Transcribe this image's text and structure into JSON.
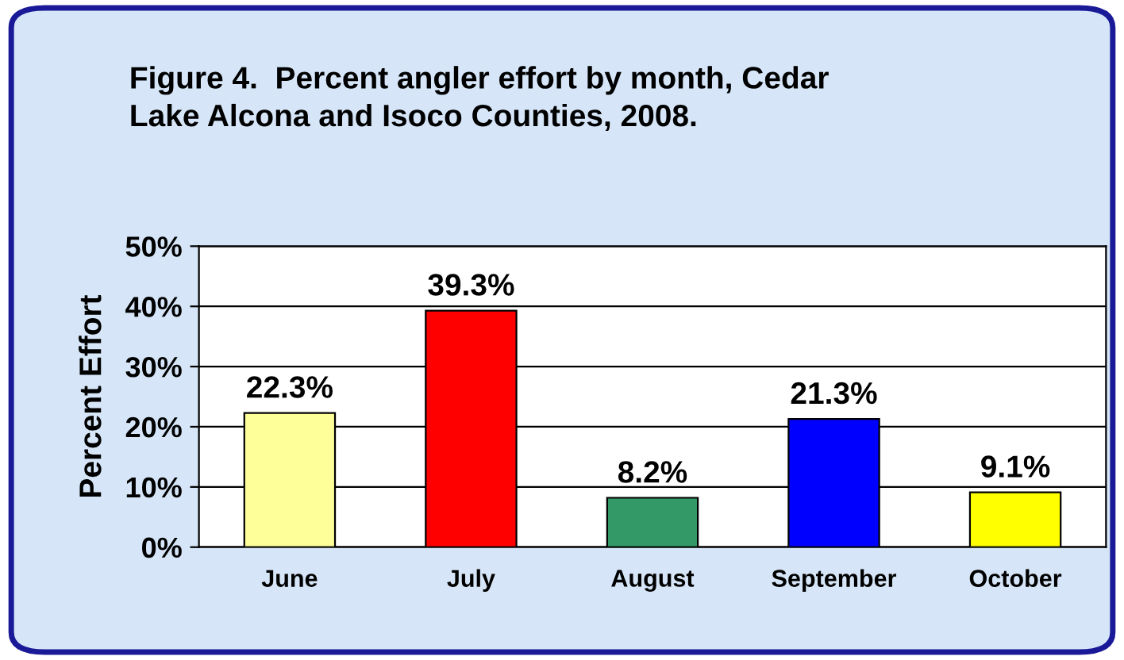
{
  "chart_data": {
    "type": "bar",
    "title": "Figure 4.  Percent angler effort by month, Cedar\nLake Alcona and Isoco Counties, 2008.",
    "ylabel": "Percent Effort",
    "categories": [
      "June",
      "July",
      "August",
      "September",
      "October"
    ],
    "values": [
      22.3,
      39.3,
      8.2,
      21.3,
      9.1
    ],
    "colors": [
      "#ffff99",
      "#ff0000",
      "#339966",
      "#0000ff",
      "#ffff00"
    ],
    "value_labels": [
      "22.3%",
      "39.3%",
      "8.2%",
      "21.3%",
      "9.1%"
    ],
    "ylim": [
      0,
      50
    ],
    "yticks": [
      {
        "value": 0,
        "label": "0%"
      },
      {
        "value": 10,
        "label": "10%"
      },
      {
        "value": 20,
        "label": "20%"
      },
      {
        "value": 30,
        "label": "30%"
      },
      {
        "value": 40,
        "label": "40%"
      },
      {
        "value": 50,
        "label": "50%"
      }
    ],
    "grid": "y",
    "legend": false
  }
}
